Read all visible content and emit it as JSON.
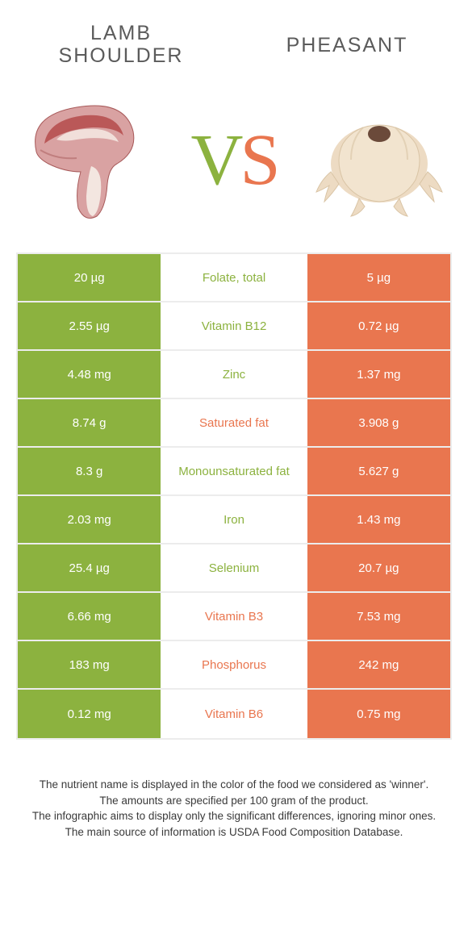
{
  "colors": {
    "green": "#8cb23f",
    "orange": "#e9764f",
    "label_green": "#8cb23f",
    "label_orange": "#e9764f",
    "cell_bg_green": "#8cb23f",
    "cell_bg_orange": "#e9764f",
    "title_color": "#5b5b5b",
    "footer_color": "#3a3a3a",
    "border": "#ececec"
  },
  "header": {
    "left_title": "Lamb shoulder",
    "right_title": "Pheasant",
    "vs_v": "V",
    "vs_s": "S"
  },
  "rows": [
    {
      "left": "20 µg",
      "label": "Folate, total",
      "right": "5 µg",
      "winner": "left"
    },
    {
      "left": "2.55 µg",
      "label": "Vitamin B12",
      "right": "0.72 µg",
      "winner": "left"
    },
    {
      "left": "4.48 mg",
      "label": "Zinc",
      "right": "1.37 mg",
      "winner": "left"
    },
    {
      "left": "8.74 g",
      "label": "Saturated fat",
      "right": "3.908 g",
      "winner": "right"
    },
    {
      "left": "8.3 g",
      "label": "Monounsaturated fat",
      "right": "5.627 g",
      "winner": "left"
    },
    {
      "left": "2.03 mg",
      "label": "Iron",
      "right": "1.43 mg",
      "winner": "left"
    },
    {
      "left": "25.4 µg",
      "label": "Selenium",
      "right": "20.7 µg",
      "winner": "left"
    },
    {
      "left": "6.66 mg",
      "label": "Vitamin B3",
      "right": "7.53 mg",
      "winner": "right"
    },
    {
      "left": "183 mg",
      "label": "Phosphorus",
      "right": "242 mg",
      "winner": "right"
    },
    {
      "left": "0.12 mg",
      "label": "Vitamin B6",
      "right": "0.75 mg",
      "winner": "right"
    }
  ],
  "footer": {
    "l1": "The nutrient name is displayed in the color of the food we considered as 'winner'.",
    "l2": "The amounts are specified per 100 gram of the product.",
    "l3": "The infographic aims to display only the significant differences, ignoring minor ones.",
    "l4": "The main source of information is USDA Food Composition Database."
  }
}
